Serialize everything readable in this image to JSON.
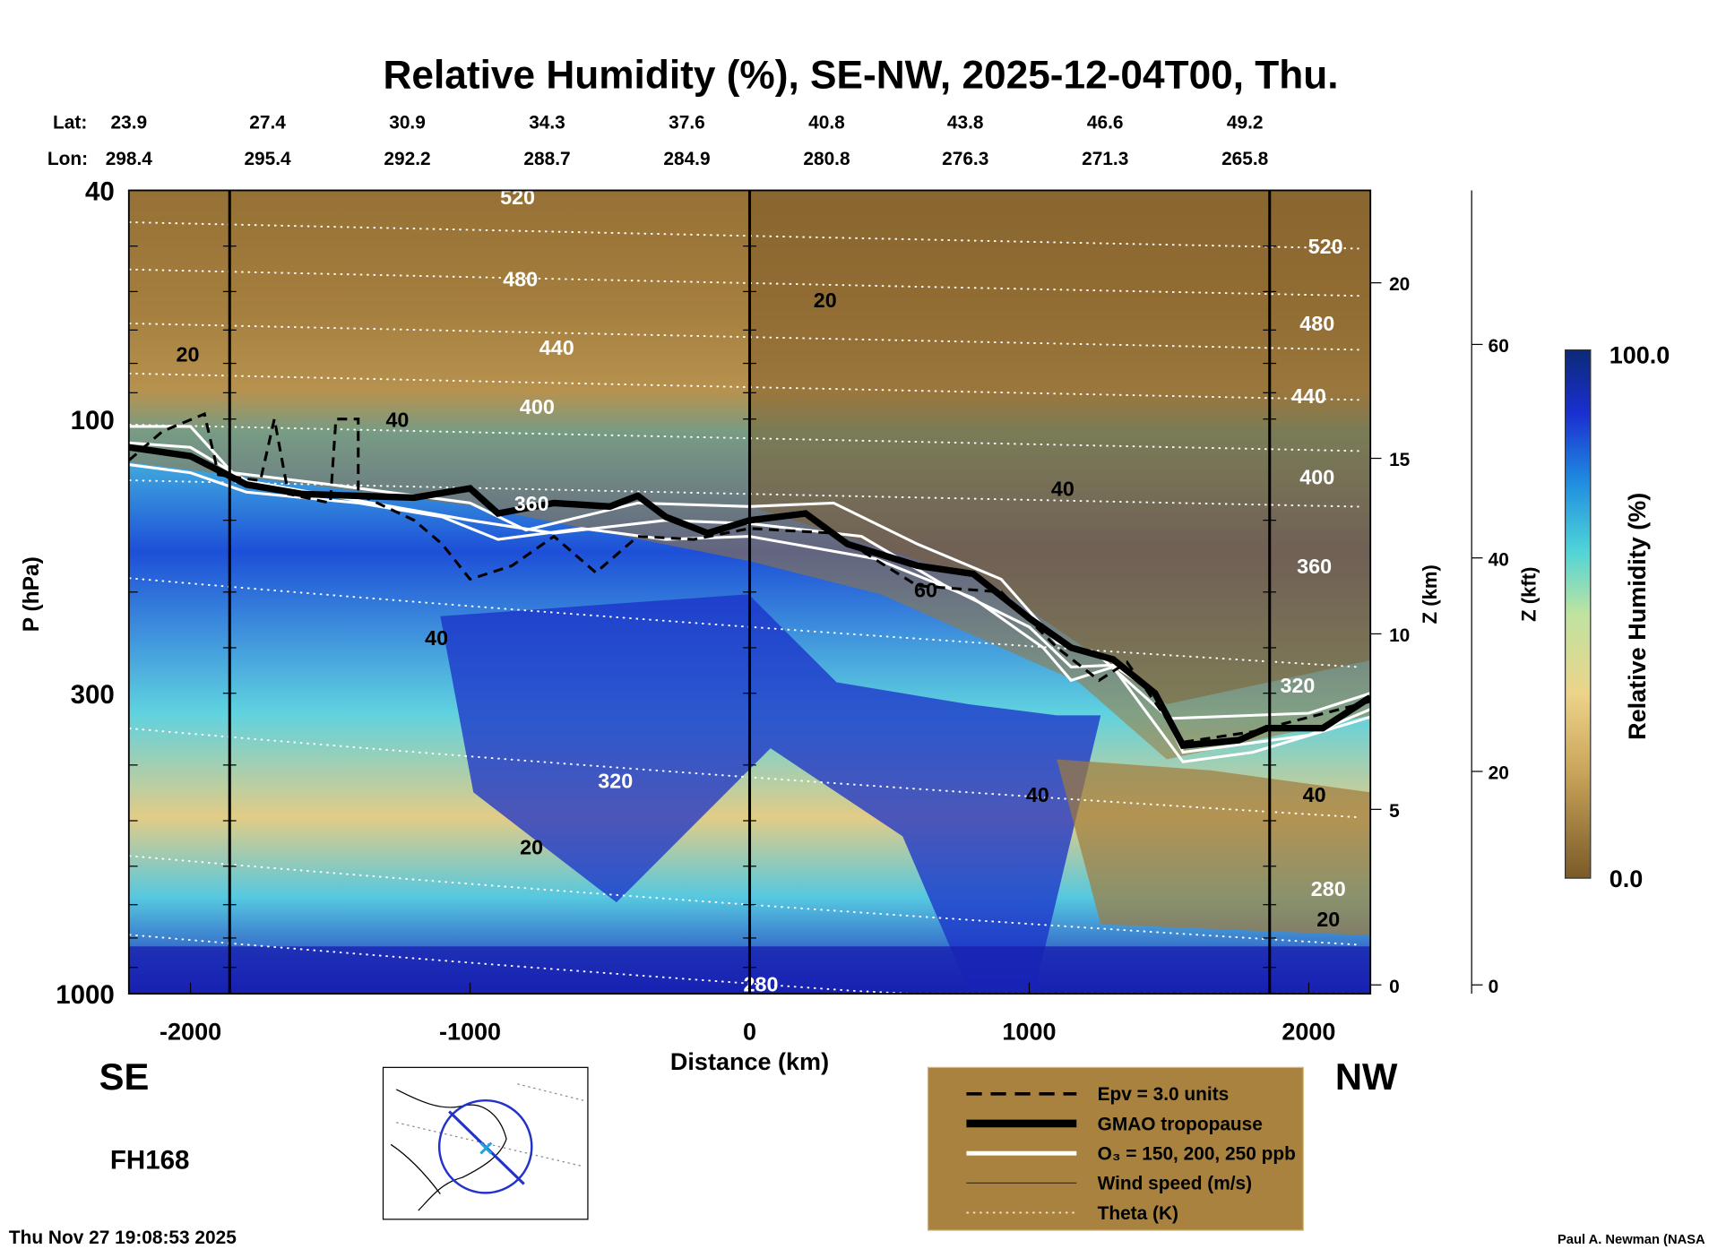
{
  "chart_data": {
    "type": "heatmap",
    "title": "Relative Humidity (%), SE-NW, 2025-12-04T00, Thu.",
    "xlabel": "Distance (km)",
    "ylabel": "P (hPa)",
    "ylabel_right_km": "Z (km)",
    "ylabel_right_kft": "Z (kft)",
    "xlim": [
      -2220,
      2220
    ],
    "ylim": [
      1000,
      40
    ],
    "x_ticks": [
      -2000,
      -1000,
      0,
      1000,
      2000
    ],
    "y_ticks": [
      40,
      100,
      300,
      1000
    ],
    "z_km_ticks": [
      0,
      5,
      10,
      15,
      20
    ],
    "z_kft_ticks": [
      0,
      20,
      40,
      60
    ],
    "lat_label": "Lat:",
    "lon_label": "Lon:",
    "lat": [
      "23.9",
      "27.4",
      "30.9",
      "34.3",
      "37.6",
      "40.8",
      "43.8",
      "46.6",
      "49.2"
    ],
    "lon": [
      "298.4",
      "295.4",
      "292.2",
      "288.7",
      "284.9",
      "280.8",
      "276.3",
      "271.3",
      "265.8"
    ],
    "left_end": "SE",
    "right_end": "NW",
    "forecast_hour": "FH168",
    "timestamp": "Thu Nov 27 19:08:53 2025",
    "credit": "Paul A. Newman (NASA",
    "colorbar": {
      "label": "Relative Humidity (%)",
      "min": "0.0",
      "max": "100.0"
    },
    "legend": [
      {
        "label": "Epv = 3.0 units",
        "style": "dashed"
      },
      {
        "label": "GMAO tropopause",
        "style": "thick"
      },
      {
        "label": "O₃ = 150, 200, 250 ppb",
        "style": "white"
      },
      {
        "label": "Wind speed (m/s)",
        "style": "thin"
      },
      {
        "label": "Theta (K)",
        "style": "dotted"
      }
    ],
    "tropopause": [
      [
        -2220,
        112
      ],
      [
        -2000,
        116
      ],
      [
        -1800,
        130
      ],
      [
        -1600,
        135
      ],
      [
        -1200,
        137
      ],
      [
        -1000,
        132
      ],
      [
        -900,
        146
      ],
      [
        -700,
        140
      ],
      [
        -500,
        142
      ],
      [
        -400,
        136
      ],
      [
        -300,
        148
      ],
      [
        -150,
        158
      ],
      [
        0,
        150
      ],
      [
        200,
        146
      ],
      [
        350,
        165
      ],
      [
        600,
        180
      ],
      [
        800,
        186
      ],
      [
        1000,
        222
      ],
      [
        1150,
        250
      ],
      [
        1300,
        262
      ],
      [
        1450,
        300
      ],
      [
        1550,
        370
      ],
      [
        1750,
        362
      ],
      [
        1850,
        345
      ],
      [
        2050,
        345
      ],
      [
        2220,
        305
      ]
    ],
    "ozone": [
      [
        [
          -2220,
          103
        ],
        [
          -2000,
          103
        ],
        [
          -1850,
          124
        ],
        [
          -1500,
          130
        ],
        [
          -1000,
          140
        ],
        [
          -800,
          156
        ],
        [
          -400,
          140
        ],
        [
          0,
          142
        ],
        [
          300,
          140
        ],
        [
          600,
          165
        ],
        [
          900,
          190
        ],
        [
          1100,
          245
        ],
        [
          1250,
          258
        ],
        [
          1500,
          332
        ],
        [
          2000,
          325
        ],
        [
          2220,
          300
        ]
      ],
      [
        [
          -2220,
          110
        ],
        [
          -2000,
          112
        ],
        [
          -1800,
          128
        ],
        [
          -1500,
          136
        ],
        [
          -1000,
          150
        ],
        [
          -700,
          158
        ],
        [
          -300,
          150
        ],
        [
          0,
          152
        ],
        [
          400,
          160
        ],
        [
          700,
          195
        ],
        [
          1000,
          230
        ],
        [
          1150,
          270
        ],
        [
          1300,
          268
        ],
        [
          1450,
          300
        ],
        [
          1550,
          380
        ],
        [
          2000,
          355
        ],
        [
          2220,
          320
        ]
      ],
      [
        [
          -2220,
          120
        ],
        [
          -2000,
          124
        ],
        [
          -1800,
          134
        ],
        [
          -1400,
          140
        ],
        [
          -1100,
          148
        ],
        [
          -900,
          162
        ],
        [
          -600,
          155
        ],
        [
          -300,
          162
        ],
        [
          0,
          160
        ],
        [
          450,
          175
        ],
        [
          800,
          205
        ],
        [
          1050,
          250
        ],
        [
          1150,
          285
        ],
        [
          1300,
          270
        ],
        [
          1550,
          395
        ],
        [
          1800,
          380
        ],
        [
          2220,
          330
        ]
      ]
    ],
    "epv": [
      [
        -2220,
        118
      ],
      [
        -2100,
        105
      ],
      [
        -1950,
        98
      ],
      [
        -1900,
        125
      ],
      [
        -1750,
        128
      ],
      [
        -1700,
        100
      ],
      [
        -1650,
        135
      ],
      [
        -1500,
        140
      ],
      [
        -1480,
        100
      ],
      [
        -1400,
        100
      ],
      [
        -1400,
        135
      ],
      [
        -1200,
        150
      ],
      [
        -1100,
        165
      ],
      [
        -1000,
        190
      ],
      [
        -850,
        180
      ],
      [
        -700,
        160
      ],
      [
        -550,
        185
      ],
      [
        -400,
        160
      ],
      [
        -200,
        162
      ],
      [
        0,
        155
      ],
      [
        300,
        158
      ],
      [
        600,
        195
      ],
      [
        900,
        200
      ],
      [
        1100,
        250
      ],
      [
        1250,
        285
      ],
      [
        1350,
        265
      ],
      [
        1550,
        365
      ],
      [
        1800,
        350
      ],
      [
        2220,
        310
      ]
    ],
    "theta_labels": [
      {
        "text": "520",
        "x": -830,
        "p": 41
      },
      {
        "text": "480",
        "x": -820,
        "p": 57
      },
      {
        "text": "440",
        "x": -690,
        "p": 75
      },
      {
        "text": "400",
        "x": -760,
        "p": 95
      },
      {
        "text": "360",
        "x": -780,
        "p": 140
      },
      {
        "text": "320",
        "x": -480,
        "p": 425
      },
      {
        "text": "280",
        "x": 40,
        "p": 960
      },
      {
        "text": "520",
        "x": 2060,
        "p": 50
      },
      {
        "text": "480",
        "x": 2030,
        "p": 68
      },
      {
        "text": "440",
        "x": 2000,
        "p": 91
      },
      {
        "text": "400",
        "x": 2030,
        "p": 126
      },
      {
        "text": "360",
        "x": 2020,
        "p": 180
      },
      {
        "text": "320",
        "x": 1960,
        "p": 290
      },
      {
        "text": "280",
        "x": 2070,
        "p": 655
      }
    ],
    "wind_labels": [
      {
        "text": "20",
        "x": -2010,
        "p": 77
      },
      {
        "text": "40",
        "x": -1260,
        "p": 100
      },
      {
        "text": "40",
        "x": -1120,
        "p": 240
      },
      {
        "text": "20",
        "x": -780,
        "p": 555
      },
      {
        "text": "20",
        "x": 270,
        "p": 62
      },
      {
        "text": "40",
        "x": 1120,
        "p": 132
      },
      {
        "text": "60",
        "x": 630,
        "p": 198
      },
      {
        "text": "40",
        "x": 1030,
        "p": 450
      },
      {
        "text": "40",
        "x": 2020,
        "p": 450
      },
      {
        "text": "20",
        "x": 2070,
        "p": 740
      }
    ]
  }
}
